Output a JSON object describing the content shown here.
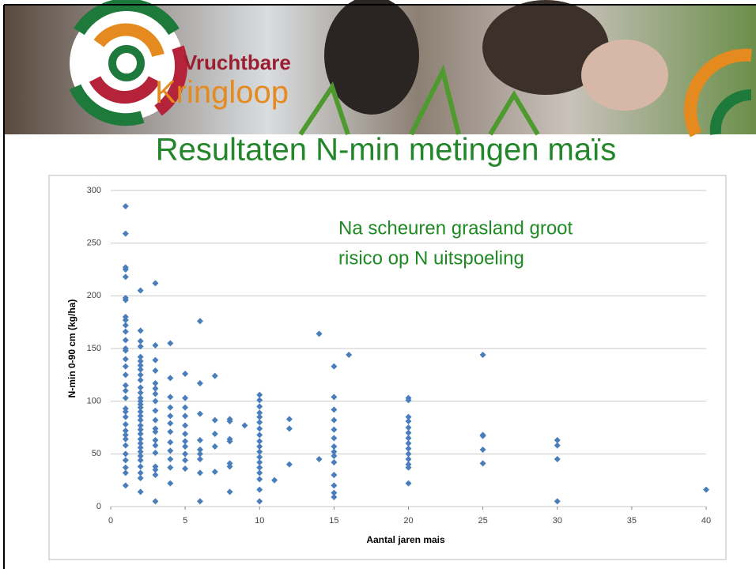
{
  "header": {
    "logo_line1": "Vruchtbare",
    "logo_line2": "Kringloop"
  },
  "chart_data": {
    "type": "scatter",
    "title": "Resultaten N-min metingen maïs",
    "annotation": [
      "Na scheuren grasland groot",
      "risico op N uitspoeling"
    ],
    "xlabel": "Aantal jaren mais",
    "ylabel": "N-min  0-90 cm (kg/ha)",
    "color": "#4a7ebb",
    "grid": true,
    "xlim": [
      0,
      40
    ],
    "xticks": [
      0,
      5,
      10,
      15,
      20,
      25,
      30,
      35,
      40
    ],
    "ylim": [
      0,
      300
    ],
    "yticks": [
      0,
      50,
      100,
      150,
      200,
      250,
      300
    ],
    "x": [
      1,
      1,
      1,
      1,
      1,
      1,
      1,
      1,
      1,
      1,
      1,
      1,
      1,
      1,
      1,
      1,
      1,
      1,
      1,
      1,
      1,
      1,
      1,
      1,
      1,
      1,
      1,
      1,
      1,
      1,
      1,
      1,
      1,
      2,
      2,
      2,
      2,
      2,
      2,
      2,
      2,
      2,
      2,
      2,
      2,
      2,
      2,
      2,
      2,
      2,
      2,
      2,
      2,
      2,
      2,
      2,
      2,
      2,
      2,
      2,
      2,
      2,
      2,
      2,
      2,
      3,
      3,
      3,
      3,
      3,
      3,
      3,
      3,
      3,
      3,
      3,
      3,
      3,
      3,
      3,
      3,
      3,
      3,
      3,
      4,
      4,
      4,
      4,
      4,
      4,
      4,
      4,
      4,
      4,
      4,
      4,
      5,
      5,
      5,
      5,
      5,
      5,
      5,
      5,
      5,
      5,
      5,
      6,
      6,
      6,
      6,
      6,
      6,
      6,
      6,
      6,
      7,
      7,
      7,
      7,
      7,
      8,
      8,
      8,
      8,
      8,
      8,
      8,
      9,
      10,
      10,
      10,
      10,
      10,
      10,
      10,
      10,
      10,
      10,
      10,
      10,
      10,
      10,
      10,
      10,
      10,
      10,
      11,
      12,
      12,
      12,
      14,
      14,
      15,
      15,
      15,
      15,
      15,
      15,
      15,
      15,
      15,
      15,
      15,
      15,
      15,
      15,
      16,
      20,
      20,
      20,
      20,
      20,
      20,
      20,
      20,
      20,
      20,
      20,
      20,
      20,
      20,
      25,
      25,
      25,
      25,
      25,
      30,
      30,
      30,
      30,
      40
    ],
    "values": [
      285,
      259,
      227,
      225,
      218,
      198,
      196,
      180,
      177,
      172,
      166,
      158,
      150,
      148,
      140,
      133,
      125,
      115,
      110,
      103,
      93,
      90,
      85,
      78,
      72,
      68,
      64,
      58,
      50,
      44,
      37,
      32,
      20,
      205,
      167,
      157,
      152,
      142,
      138,
      134,
      130,
      125,
      120,
      113,
      108,
      103,
      100,
      97,
      94,
      90,
      86,
      82,
      77,
      73,
      69,
      64,
      60,
      56,
      52,
      48,
      44,
      38,
      32,
      27,
      14,
      212,
      153,
      139,
      129,
      117,
      112,
      107,
      100,
      91,
      82,
      74,
      71,
      63,
      58,
      51,
      38,
      35,
      30,
      5,
      155,
      122,
      104,
      94,
      86,
      79,
      71,
      61,
      53,
      45,
      37,
      22,
      126,
      103,
      94,
      86,
      77,
      69,
      62,
      57,
      50,
      44,
      36,
      176,
      117,
      88,
      63,
      54,
      50,
      45,
      32,
      5,
      124,
      82,
      69,
      57,
      33,
      83,
      81,
      64,
      62,
      41,
      38,
      14,
      77,
      106,
      101,
      95,
      89,
      85,
      80,
      74,
      68,
      62,
      57,
      52,
      47,
      42,
      37,
      32,
      26,
      16,
      5,
      25,
      83,
      74,
      40,
      164,
      45,
      133,
      104,
      92,
      82,
      73,
      65,
      57,
      52,
      48,
      42,
      30,
      20,
      13,
      9,
      144,
      103,
      101,
      85,
      81,
      75,
      70,
      65,
      60,
      55,
      50,
      45,
      40,
      37,
      22,
      144,
      68,
      67,
      54,
      41,
      63,
      58,
      45,
      5,
      16
    ]
  }
}
